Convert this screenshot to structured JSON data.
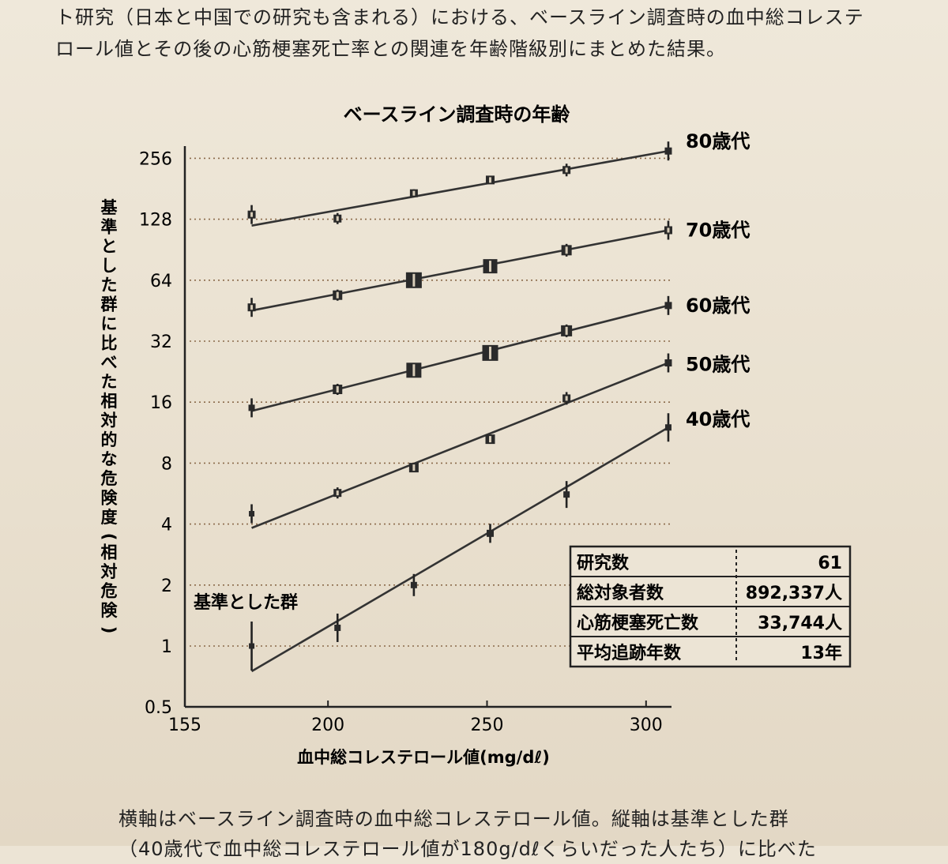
{
  "text_above": {
    "line1": "ト研究（日本と中国での研究も含まれる）における、ベースライン調査時の血中総コレステ",
    "line2": "ロール値とその後の心筋梗塞死亡率との関連を年齢階級別にまとめた結果。"
  },
  "text_below": {
    "line1": "横軸はベースライン調査時の血中総コレステロール値。縦軸は基準とした群",
    "line2": "（40歳代で血中総コレステロール値が180g/dℓくらいだった人たち）に比べた"
  },
  "chart_data": {
    "type": "line",
    "title": "ベースライン調査時の年齢",
    "xlabel": "血中総コレステロール値(mg/dℓ)",
    "ylabel": "基準とした群に比べた相対的な危険度(相対危険)",
    "xlim": [
      155,
      308
    ],
    "xticks": [
      "155",
      "200",
      "250",
      "300"
    ],
    "ylim": [
      0.5,
      300
    ],
    "yscale": "log2",
    "yticks": [
      "0.5",
      "1",
      "2",
      "4",
      "8",
      "16",
      "32",
      "64",
      "128",
      "256"
    ],
    "grid": "horizontal dotted",
    "reference_label": "基準とした群",
    "series": [
      {
        "name": "80歳代",
        "x": [
          176,
          203,
          227,
          251,
          275,
          307
        ],
        "y": [
          135,
          129,
          172,
          200,
          224,
          278
        ]
      },
      {
        "name": "70歳代",
        "x": [
          176,
          203,
          227,
          251,
          275,
          307
        ],
        "y": [
          47,
          54,
          64,
          75,
          90,
          113
        ]
      },
      {
        "name": "60歳代",
        "x": [
          176,
          203,
          227,
          251,
          275,
          307
        ],
        "y": [
          15,
          18.5,
          23,
          28,
          36,
          48
        ]
      },
      {
        "name": "50歳代",
        "x": [
          176,
          203,
          227,
          251,
          275,
          307
        ],
        "y": [
          4.5,
          5.7,
          7.6,
          10.5,
          16.7,
          25
        ]
      },
      {
        "name": "40歳代",
        "x": [
          176,
          203,
          227,
          251,
          275,
          307
        ],
        "y": [
          1,
          1.23,
          2,
          3.6,
          5.6,
          12
        ]
      }
    ]
  },
  "summary_table": {
    "rows": [
      {
        "label": "研究数",
        "value": "61"
      },
      {
        "label": "総対象者数",
        "value": "892,337人"
      },
      {
        "label": "心筋梗塞死亡数",
        "value": "33,744人"
      },
      {
        "label": "平均追跡年数",
        "value": "13年"
      }
    ]
  }
}
